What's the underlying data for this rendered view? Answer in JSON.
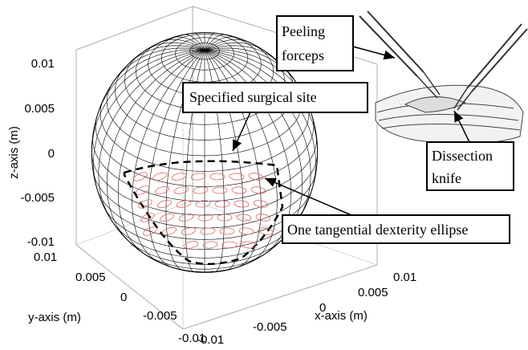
{
  "figure": {
    "axes": {
      "z_label": "z-axis (m)",
      "y_label": "y-axis (m)",
      "x_label": "x-axis (m)",
      "z_ticks": [
        "0.01",
        "0.005",
        "0",
        "-0.005",
        "-0.01"
      ],
      "y_ticks": [
        "0.01",
        "0.005",
        "0",
        "-0.005",
        "-0.01"
      ],
      "x_ticks": [
        "-0.01",
        "-0.005",
        "0",
        "0.005",
        "0.01"
      ]
    },
    "annotations": {
      "surgical_site": "Specified surgical site",
      "ellipse": "One tangential dexterity ellipse",
      "forceps": [
        "Peeling",
        "forceps"
      ],
      "knife": [
        "Dissection",
        "knife"
      ]
    }
  }
}
